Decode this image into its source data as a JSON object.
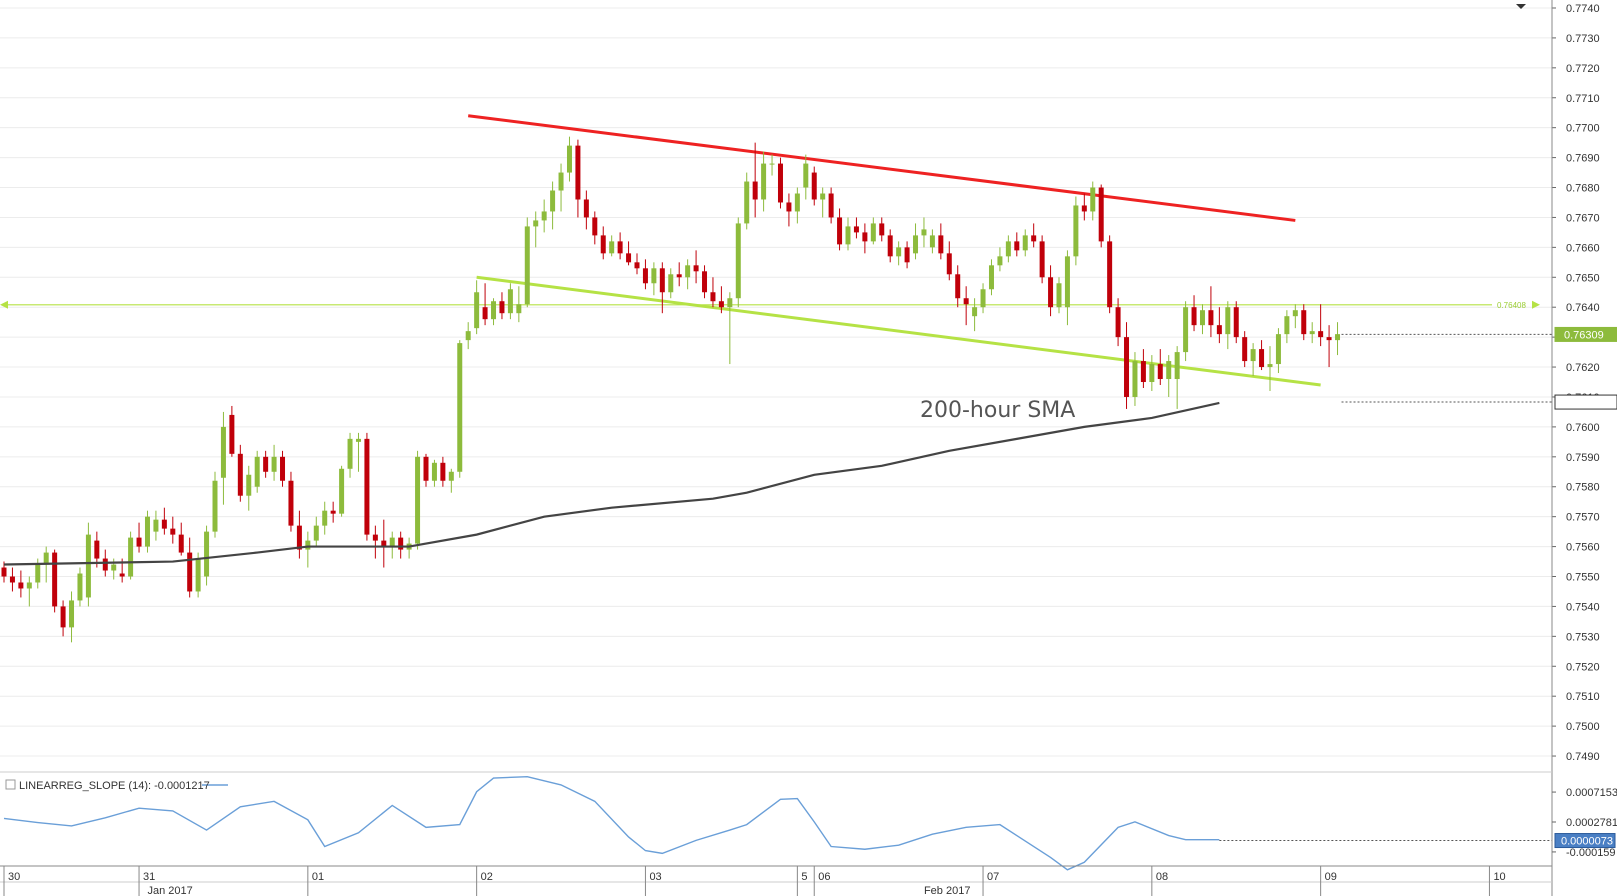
{
  "chart_data": {
    "type": "candlestick",
    "symbol_hint": "",
    "price_axis": {
      "ticks": [
        "0.7740",
        "0.7730",
        "0.7720",
        "0.7710",
        "0.7700",
        "0.7690",
        "0.7680",
        "0.7670",
        "0.7660",
        "0.7650",
        "0.7640",
        "0.7630",
        "0.7620",
        "0.7610",
        "0.7600",
        "0.7590",
        "0.7580",
        "0.7570",
        "0.7560",
        "0.7550",
        "0.7540",
        "0.7530",
        "0.7520",
        "0.7510",
        "0.7500",
        "0.7490"
      ],
      "ylim": [
        0.7485,
        0.7742
      ]
    },
    "date_axis": {
      "day_labels": [
        {
          "label": "30",
          "bar": 0
        },
        {
          "label": "31",
          "bar": 16
        },
        {
          "label": "01",
          "bar": 36
        },
        {
          "label": "02",
          "bar": 56
        },
        {
          "label": "03",
          "bar": 76
        },
        {
          "label": "5",
          "bar": 94
        },
        {
          "label": "06",
          "bar": 96
        },
        {
          "label": "07",
          "bar": 116
        },
        {
          "label": "08",
          "bar": 136
        },
        {
          "label": "09",
          "bar": 156
        },
        {
          "label": "10",
          "bar": 176
        }
      ],
      "month_labels": [
        {
          "label": "Jan 2017",
          "bar": 17
        },
        {
          "label": "Feb 2017",
          "bar": 109
        }
      ]
    },
    "candles": [
      [
        0.7553,
        0.7555,
        0.7548,
        0.755
      ],
      [
        0.755,
        0.7553,
        0.7545,
        0.7548
      ],
      [
        0.7548,
        0.7552,
        0.7543,
        0.7546
      ],
      [
        0.7546,
        0.755,
        0.754,
        0.7548
      ],
      [
        0.7548,
        0.7556,
        0.7546,
        0.7554
      ],
      [
        0.7554,
        0.756,
        0.7548,
        0.7558
      ],
      [
        0.7558,
        0.7559,
        0.7538,
        0.754
      ],
      [
        0.754,
        0.7542,
        0.753,
        0.7533
      ],
      [
        0.7533,
        0.7545,
        0.7528,
        0.7542
      ],
      [
        0.7542,
        0.7553,
        0.754,
        0.7551
      ],
      [
        0.7543,
        0.7568,
        0.754,
        0.7564
      ],
      [
        0.7562,
        0.7565,
        0.7553,
        0.7556
      ],
      [
        0.7556,
        0.7559,
        0.755,
        0.7552
      ],
      [
        0.7552,
        0.7556,
        0.7549,
        0.7554
      ],
      [
        0.7551,
        0.7556,
        0.7548,
        0.755
      ],
      [
        0.755,
        0.7565,
        0.7549,
        0.7563
      ],
      [
        0.7563,
        0.7568,
        0.7558,
        0.756
      ],
      [
        0.756,
        0.7572,
        0.7558,
        0.757
      ],
      [
        0.7565,
        0.7572,
        0.7562,
        0.7569
      ],
      [
        0.7569,
        0.7573,
        0.7564,
        0.7566
      ],
      [
        0.7566,
        0.757,
        0.7561,
        0.7564
      ],
      [
        0.7564,
        0.7568,
        0.7557,
        0.7558
      ],
      [
        0.7558,
        0.7563,
        0.7543,
        0.7545
      ],
      [
        0.7545,
        0.7558,
        0.7543,
        0.7556
      ],
      [
        0.755,
        0.7567,
        0.7547,
        0.7565
      ],
      [
        0.7565,
        0.7585,
        0.7563,
        0.7582
      ],
      [
        0.7583,
        0.7605,
        0.7574,
        0.76
      ],
      [
        0.7604,
        0.7607,
        0.759,
        0.7591
      ],
      [
        0.7591,
        0.7594,
        0.7575,
        0.7577
      ],
      [
        0.7577,
        0.7587,
        0.7572,
        0.7584
      ],
      [
        0.758,
        0.7592,
        0.7578,
        0.759
      ],
      [
        0.759,
        0.7592,
        0.7583,
        0.7585
      ],
      [
        0.7585,
        0.7594,
        0.7582,
        0.759
      ],
      [
        0.759,
        0.7592,
        0.758,
        0.7582
      ],
      [
        0.7582,
        0.7585,
        0.7565,
        0.7567
      ],
      [
        0.7567,
        0.7572,
        0.7556,
        0.7559
      ],
      [
        0.7559,
        0.7565,
        0.7553,
        0.7562
      ],
      [
        0.7562,
        0.757,
        0.756,
        0.7567
      ],
      [
        0.7567,
        0.7575,
        0.7564,
        0.7572
      ],
      [
        0.7572,
        0.7575,
        0.7568,
        0.7571
      ],
      [
        0.7571,
        0.7587,
        0.757,
        0.7586
      ],
      [
        0.7586,
        0.7598,
        0.7583,
        0.7596
      ],
      [
        0.7595,
        0.7598,
        0.7585,
        0.7596
      ],
      [
        0.7596,
        0.7598,
        0.7562,
        0.7564
      ],
      [
        0.7564,
        0.7567,
        0.7556,
        0.7562
      ],
      [
        0.7562,
        0.7569,
        0.7553,
        0.756
      ],
      [
        0.756,
        0.7565,
        0.7556,
        0.7563
      ],
      [
        0.7563,
        0.7565,
        0.7556,
        0.7559
      ],
      [
        0.7559,
        0.7563,
        0.7556,
        0.7561
      ],
      [
        0.7561,
        0.7592,
        0.7559,
        0.759
      ],
      [
        0.759,
        0.7591,
        0.758,
        0.7582
      ],
      [
        0.7582,
        0.7589,
        0.758,
        0.7588
      ],
      [
        0.7588,
        0.759,
        0.758,
        0.7582
      ],
      [
        0.7582,
        0.7586,
        0.7578,
        0.7585
      ],
      [
        0.7585,
        0.7629,
        0.7583,
        0.7628
      ],
      [
        0.7629,
        0.7635,
        0.7626,
        0.7632
      ],
      [
        0.7633,
        0.7649,
        0.7631,
        0.7645
      ],
      [
        0.764,
        0.7648,
        0.7634,
        0.7636
      ],
      [
        0.7636,
        0.7643,
        0.7634,
        0.7642
      ],
      [
        0.7642,
        0.7645,
        0.7636,
        0.7638
      ],
      [
        0.7638,
        0.7648,
        0.7636,
        0.7646
      ],
      [
        0.7638,
        0.7647,
        0.7635,
        0.7641
      ],
      [
        0.7641,
        0.767,
        0.764,
        0.7667
      ],
      [
        0.7667,
        0.7672,
        0.766,
        0.7669
      ],
      [
        0.7669,
        0.7676,
        0.7665,
        0.7672
      ],
      [
        0.7672,
        0.7682,
        0.7666,
        0.7679
      ],
      [
        0.7679,
        0.7688,
        0.7672,
        0.7685
      ],
      [
        0.7685,
        0.7697,
        0.7682,
        0.7694
      ],
      [
        0.7694,
        0.7696,
        0.767,
        0.7676
      ],
      [
        0.7676,
        0.7679,
        0.7666,
        0.767
      ],
      [
        0.767,
        0.7672,
        0.7661,
        0.7664
      ],
      [
        0.7664,
        0.7667,
        0.7656,
        0.7658
      ],
      [
        0.7658,
        0.7664,
        0.7657,
        0.7662
      ],
      [
        0.7662,
        0.7665,
        0.7656,
        0.7658
      ],
      [
        0.7658,
        0.7662,
        0.7654,
        0.7655
      ],
      [
        0.7655,
        0.7658,
        0.7651,
        0.7653
      ],
      [
        0.7653,
        0.7656,
        0.7646,
        0.7648
      ],
      [
        0.7648,
        0.7655,
        0.7644,
        0.7653
      ],
      [
        0.7653,
        0.7655,
        0.7638,
        0.7645
      ],
      [
        0.7645,
        0.7653,
        0.7643,
        0.7651
      ],
      [
        0.7651,
        0.7655,
        0.7647,
        0.765
      ],
      [
        0.765,
        0.7656,
        0.7646,
        0.7654
      ],
      [
        0.7654,
        0.7659,
        0.7648,
        0.7652
      ],
      [
        0.7652,
        0.7654,
        0.7643,
        0.7645
      ],
      [
        0.7645,
        0.765,
        0.764,
        0.7642
      ],
      [
        0.7642,
        0.7647,
        0.7638,
        0.764
      ],
      [
        0.764,
        0.7645,
        0.7621,
        0.7643
      ],
      [
        0.7643,
        0.767,
        0.764,
        0.7668
      ],
      [
        0.7668,
        0.7685,
        0.7666,
        0.7682
      ],
      [
        0.7682,
        0.7695,
        0.767,
        0.7676
      ],
      [
        0.7676,
        0.7692,
        0.7672,
        0.7688
      ],
      [
        0.7688,
        0.7691,
        0.7684,
        0.7688
      ],
      [
        0.7688,
        0.769,
        0.7673,
        0.7675
      ],
      [
        0.7675,
        0.7678,
        0.7667,
        0.7672
      ],
      [
        0.7672,
        0.768,
        0.7668,
        0.7678
      ],
      [
        0.768,
        0.7691,
        0.7676,
        0.7688
      ],
      [
        0.7685,
        0.7687,
        0.7674,
        0.7676
      ],
      [
        0.7676,
        0.768,
        0.767,
        0.7678
      ],
      [
        0.7678,
        0.768,
        0.7668,
        0.767
      ],
      [
        0.767,
        0.7673,
        0.7659,
        0.7661
      ],
      [
        0.7661,
        0.767,
        0.7659,
        0.7667
      ],
      [
        0.7667,
        0.767,
        0.7663,
        0.7665
      ],
      [
        0.7665,
        0.7668,
        0.7658,
        0.7662
      ],
      [
        0.7662,
        0.767,
        0.7661,
        0.7668
      ],
      [
        0.7668,
        0.767,
        0.7662,
        0.7664
      ],
      [
        0.7664,
        0.7666,
        0.7655,
        0.7657
      ],
      [
        0.7657,
        0.7662,
        0.7654,
        0.766
      ],
      [
        0.766,
        0.7662,
        0.7653,
        0.7655
      ],
      [
        0.7658,
        0.7668,
        0.7656,
        0.7664
      ],
      [
        0.7664,
        0.767,
        0.766,
        0.7666
      ],
      [
        0.766,
        0.7666,
        0.7658,
        0.7664
      ],
      [
        0.7664,
        0.7668,
        0.7656,
        0.7658
      ],
      [
        0.7658,
        0.7662,
        0.7649,
        0.7651
      ],
      [
        0.7651,
        0.7654,
        0.764,
        0.7643
      ],
      [
        0.7643,
        0.7647,
        0.7634,
        0.7641
      ],
      [
        0.7637,
        0.7643,
        0.7632,
        0.764
      ],
      [
        0.764,
        0.7648,
        0.7638,
        0.7646
      ],
      [
        0.7646,
        0.7656,
        0.7644,
        0.7654
      ],
      [
        0.7654,
        0.766,
        0.7652,
        0.7657
      ],
      [
        0.7657,
        0.7664,
        0.7655,
        0.7662
      ],
      [
        0.7662,
        0.7665,
        0.7657,
        0.7659
      ],
      [
        0.7659,
        0.7666,
        0.7657,
        0.7664
      ],
      [
        0.7664,
        0.7668,
        0.766,
        0.7662
      ],
      [
        0.7662,
        0.7664,
        0.7648,
        0.765
      ],
      [
        0.765,
        0.7654,
        0.7637,
        0.764
      ],
      [
        0.764,
        0.765,
        0.7638,
        0.7648
      ],
      [
        0.764,
        0.7659,
        0.7634,
        0.7657
      ],
      [
        0.7657,
        0.7677,
        0.7654,
        0.7674
      ],
      [
        0.7674,
        0.7678,
        0.7669,
        0.7672
      ],
      [
        0.7672,
        0.7682,
        0.7669,
        0.768
      ],
      [
        0.768,
        0.7681,
        0.766,
        0.7662
      ],
      [
        0.7662,
        0.7664,
        0.7638,
        0.764
      ],
      [
        0.764,
        0.7643,
        0.7627,
        0.763
      ],
      [
        0.763,
        0.7635,
        0.7606,
        0.761
      ],
      [
        0.761,
        0.7625,
        0.7607,
        0.7622
      ],
      [
        0.7622,
        0.7626,
        0.7613,
        0.7615
      ],
      [
        0.7615,
        0.7624,
        0.7612,
        0.7621
      ],
      [
        0.7621,
        0.7626,
        0.7614,
        0.7616
      ],
      [
        0.7616,
        0.7624,
        0.761,
        0.7622
      ],
      [
        0.7616,
        0.7627,
        0.7606,
        0.7625
      ],
      [
        0.7625,
        0.7642,
        0.7622,
        0.764
      ],
      [
        0.764,
        0.7644,
        0.7632,
        0.7634
      ],
      [
        0.7634,
        0.7641,
        0.7631,
        0.7639
      ],
      [
        0.7639,
        0.7647,
        0.763,
        0.7634
      ],
      [
        0.7634,
        0.764,
        0.7628,
        0.7631
      ],
      [
        0.7631,
        0.7642,
        0.7626,
        0.764
      ],
      [
        0.764,
        0.7642,
        0.7628,
        0.763
      ],
      [
        0.763,
        0.7632,
        0.762,
        0.7622
      ],
      [
        0.7622,
        0.7628,
        0.7617,
        0.7626
      ],
      [
        0.7626,
        0.7629,
        0.7619,
        0.762
      ],
      [
        0.762,
        0.7627,
        0.7612,
        0.7621
      ],
      [
        0.7621,
        0.7633,
        0.7618,
        0.7631
      ],
      [
        0.7631,
        0.7639,
        0.7628,
        0.7637
      ],
      [
        0.7637,
        0.7641,
        0.7633,
        0.7639
      ],
      [
        0.7639,
        0.7641,
        0.7629,
        0.7631
      ],
      [
        0.7631,
        0.7635,
        0.7628,
        0.7632
      ],
      [
        0.7632,
        0.7641,
        0.7627,
        0.763
      ],
      [
        0.763,
        0.7634,
        0.762,
        0.7629
      ],
      [
        0.7629,
        0.7635,
        0.7624,
        0.7631
      ]
    ],
    "sma200": [
      [
        0,
        0.7554
      ],
      [
        20,
        0.7555
      ],
      [
        30,
        0.7558
      ],
      [
        36,
        0.756
      ],
      [
        48,
        0.756
      ],
      [
        56,
        0.7564
      ],
      [
        64,
        0.757
      ],
      [
        72,
        0.7573
      ],
      [
        84,
        0.7576
      ],
      [
        88,
        0.7578
      ],
      [
        96,
        0.7584
      ],
      [
        104,
        0.7587
      ],
      [
        112,
        0.7592
      ],
      [
        120,
        0.7596
      ],
      [
        128,
        0.76
      ],
      [
        136,
        0.7603
      ],
      [
        144,
        0.7608
      ]
    ],
    "lines": {
      "resistance": {
        "from": [
          55,
          0.7704
        ],
        "to": [
          153,
          0.7669
        ],
        "color": "#ee2222"
      },
      "support": {
        "from": [
          56,
          0.765
        ],
        "to": [
          156,
          0.7614
        ],
        "color": "#b5e245"
      },
      "horizontal": {
        "value": 0.76408,
        "color": "#b5e245",
        "marker": "0.76408"
      }
    },
    "price_tags": [
      {
        "label": "0.76309",
        "value": 0.76309,
        "color": "#8dbb3c"
      },
      {
        "label": "0.76083",
        "value": 0.76083,
        "color": "#ffffff"
      }
    ],
    "annotation": "200-hour SMA",
    "indicator": {
      "title": "LINEARREG_SLOPE (14): -0.0001217",
      "ticks": [
        "0.0007153",
        "0.0002781",
        "-0.000159"
      ],
      "last_tag": "0.0000073",
      "ylim": [
        -0.00035,
        0.00095
      ],
      "values": [
        [
          0,
          0.00033
        ],
        [
          4,
          0.00027
        ],
        [
          8,
          0.00022
        ],
        [
          12,
          0.00034
        ],
        [
          16,
          0.00048
        ],
        [
          20,
          0.00044
        ],
        [
          24,
          0.00016
        ],
        [
          28,
          0.0005
        ],
        [
          32,
          0.00058
        ],
        [
          36,
          0.00031
        ],
        [
          38,
          -8e-05
        ],
        [
          42,
          0.00012
        ],
        [
          46,
          0.00052
        ],
        [
          50,
          0.0002
        ],
        [
          54,
          0.00024
        ],
        [
          56,
          0.00072
        ],
        [
          58,
          0.00092
        ],
        [
          62,
          0.00094
        ],
        [
          66,
          0.00082
        ],
        [
          70,
          0.00058
        ],
        [
          74,
          6e-05
        ],
        [
          76,
          -0.00014
        ],
        [
          78,
          -0.00018
        ],
        [
          82,
          1e-05
        ],
        [
          86,
          0.00016
        ],
        [
          88,
          0.00024
        ],
        [
          92,
          0.00061
        ],
        [
          94,
          0.00062
        ],
        [
          96,
          0.00028
        ],
        [
          98,
          -8e-05
        ],
        [
          102,
          -0.00012
        ],
        [
          106,
          -6e-05
        ],
        [
          110,
          0.0001
        ],
        [
          114,
          0.0002
        ],
        [
          118,
          0.00024
        ],
        [
          120,
          8e-05
        ],
        [
          124,
          -0.00024
        ],
        [
          126,
          -0.00042
        ],
        [
          128,
          -0.00031
        ],
        [
          132,
          0.0002
        ],
        [
          134,
          0.00028
        ],
        [
          138,
          8e-05
        ],
        [
          140,
          2e-05
        ],
        [
          144,
          2e-05
        ]
      ]
    }
  }
}
